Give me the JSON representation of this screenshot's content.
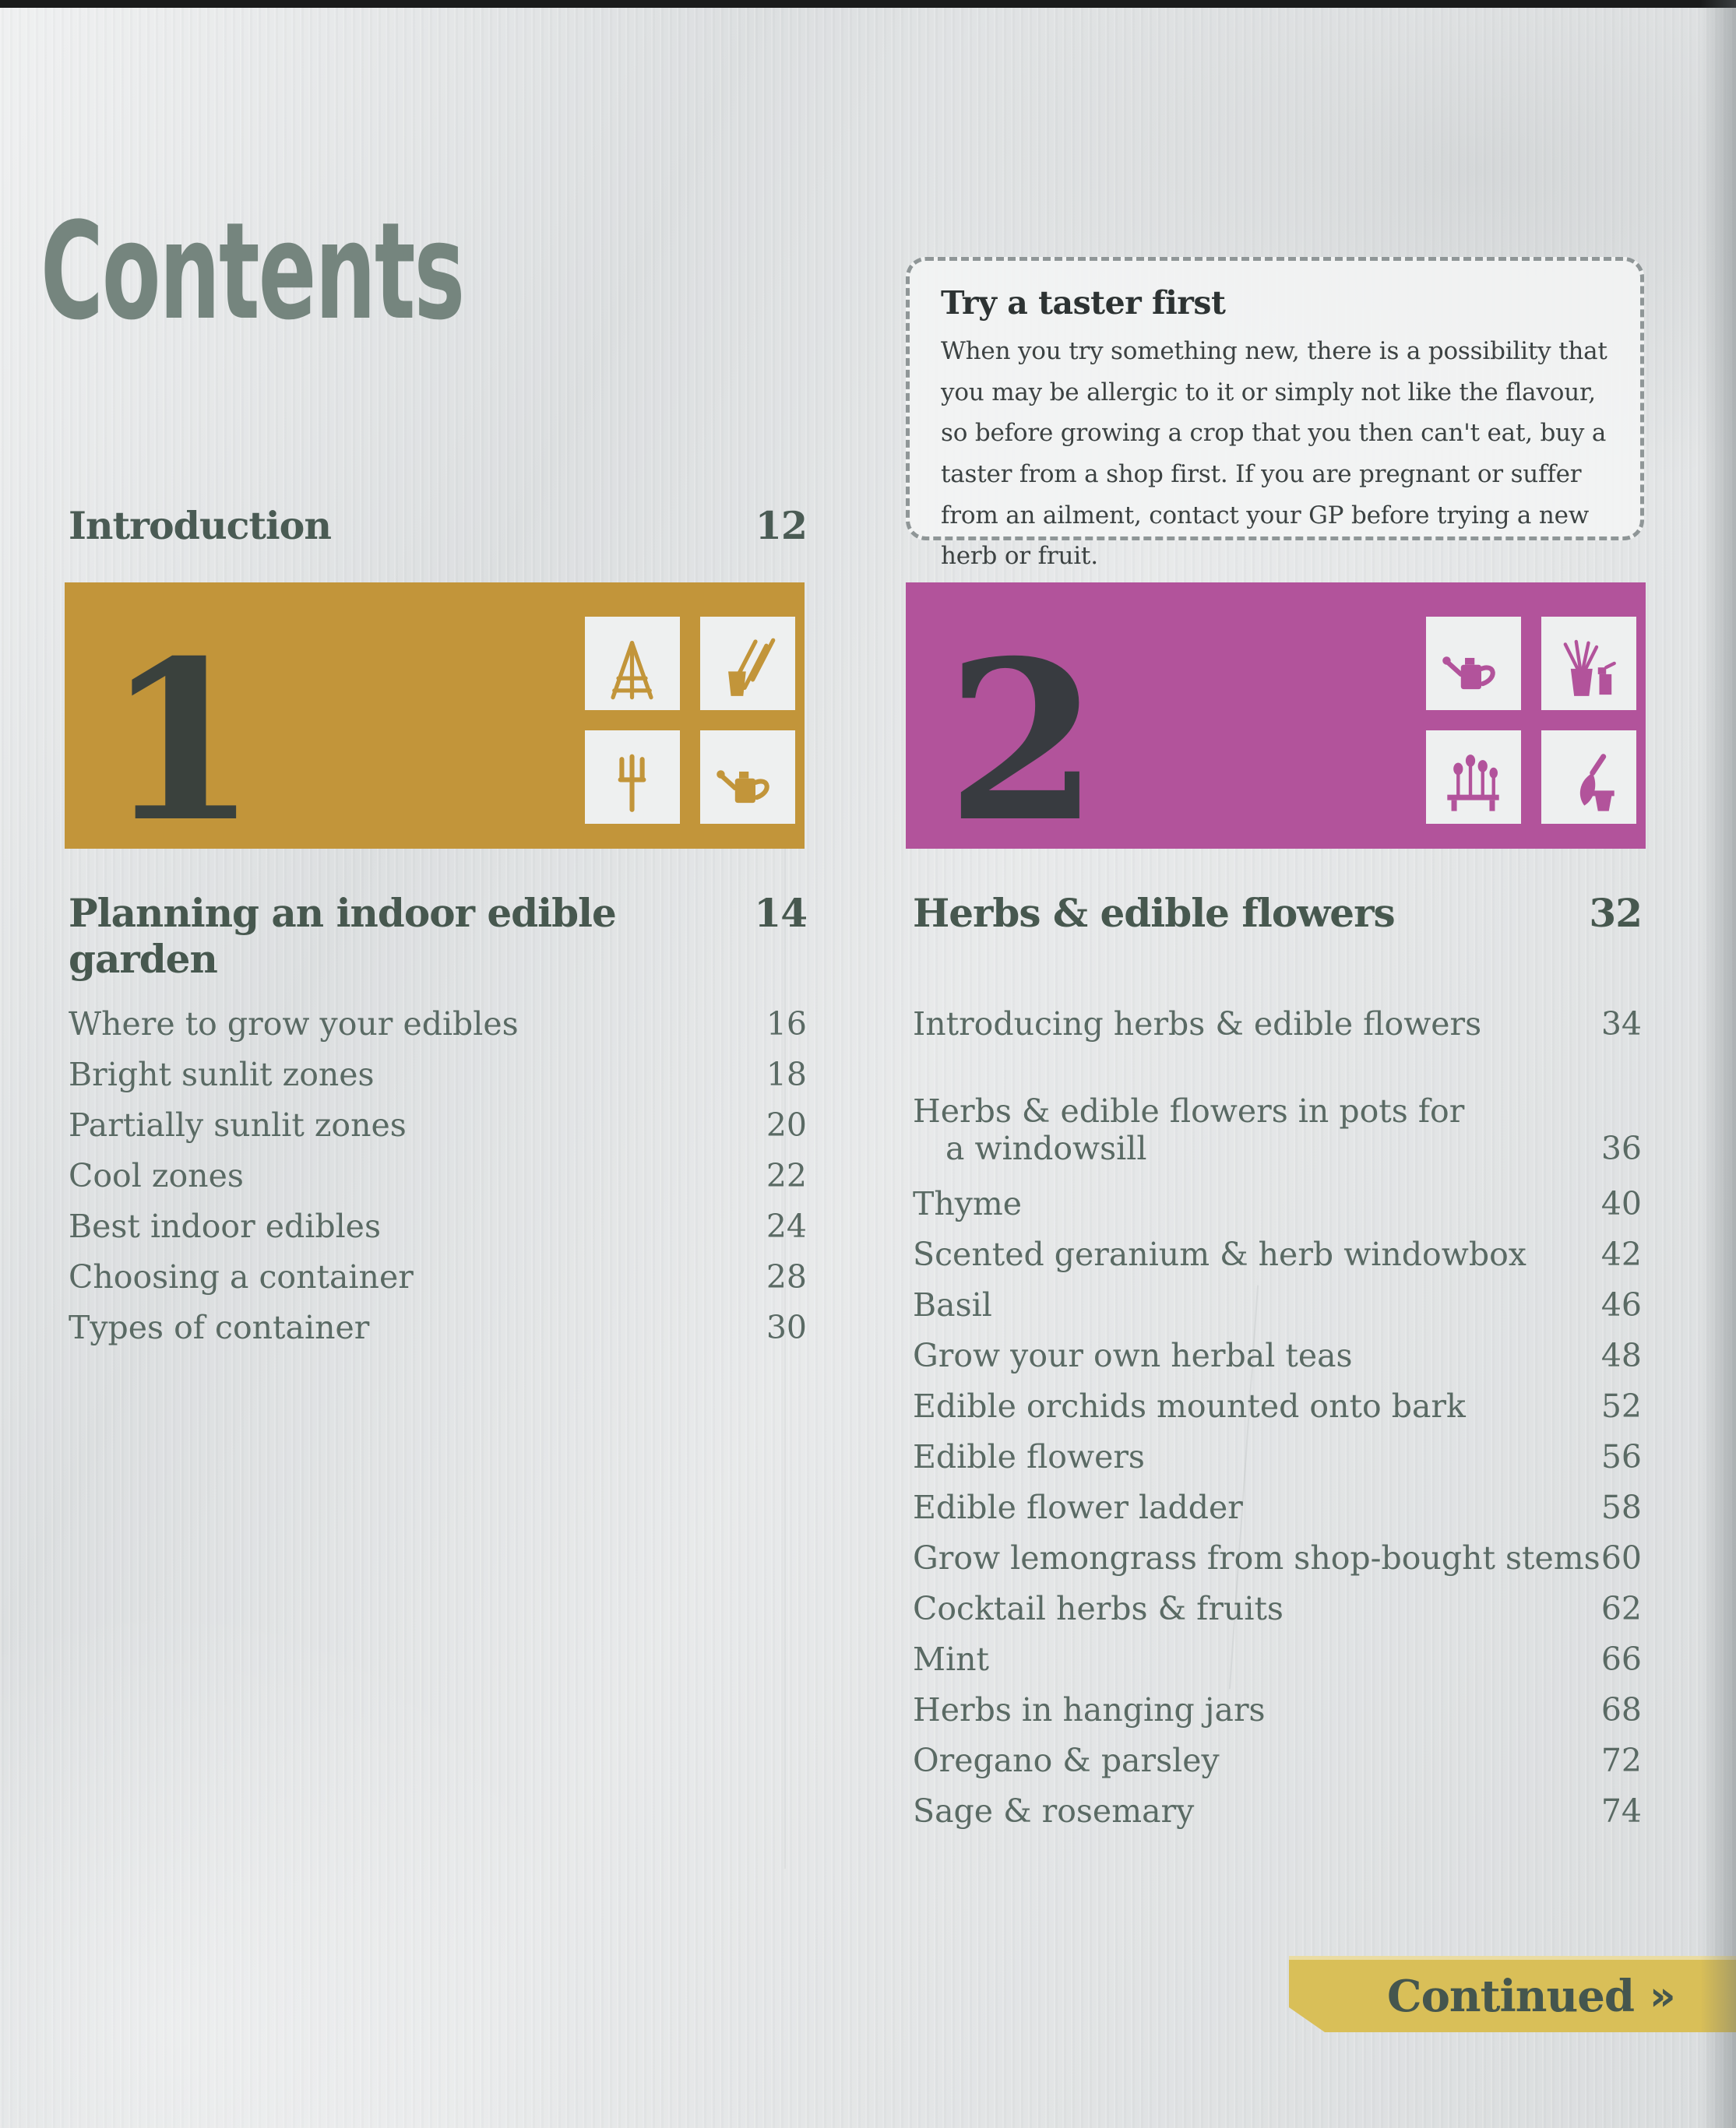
{
  "page": {
    "title": "Contents"
  },
  "taster_box": {
    "title": "Try a taster first",
    "body": "When you try something new, there is a possibility that you may be allergic to it or simply not like the flavour, so before growing a crop that you then can't eat, buy a taster from a shop first. If you are pregnant or suffer from an ailment, contact your GP before trying a new herb or fruit."
  },
  "introduction": {
    "label": "Introduction",
    "page": "12"
  },
  "chapters": [
    {
      "number": "1",
      "title": "Planning an indoor edible garden",
      "page": "14",
      "color": "#c2953a",
      "number_color": "#3a413d",
      "window_icons": [
        "trellis-icon",
        "dibber-and-pot-icon",
        "hand-fork-icon",
        "watering-can-icon"
      ],
      "entries": [
        {
          "label": "Where to grow your edibles",
          "page": "16"
        },
        {
          "label": "Bright sunlit zones",
          "page": "18"
        },
        {
          "label": "Partially sunlit zones",
          "page": "20"
        },
        {
          "label": "Cool zones",
          "page": "22"
        },
        {
          "label": "Best indoor edibles",
          "page": "24"
        },
        {
          "label": "Choosing a container",
          "page": "28"
        },
        {
          "label": "Types of container",
          "page": "30"
        }
      ]
    },
    {
      "number": "2",
      "title": "Herbs & edible flowers",
      "page": "32",
      "color": "#b2539b",
      "number_color": "#383b40",
      "window_icons": [
        "watering-can-icon",
        "potted-grass-and-spray-icon",
        "flower-bench-icon",
        "trowel-and-pot-icon"
      ],
      "entries": [
        {
          "label": "Introducing herbs & edible flowers",
          "page": "34"
        },
        {
          "label": "Herbs & edible flowers in pots for",
          "label_line2": "a windowsill",
          "page": "36",
          "gap_before": true
        },
        {
          "label": "Thyme",
          "page": "40"
        },
        {
          "label": "Scented geranium & herb windowbox",
          "page": "42"
        },
        {
          "label": "Basil",
          "page": "46"
        },
        {
          "label": "Grow your own herbal teas",
          "page": "48"
        },
        {
          "label": "Edible orchids mounted onto bark",
          "page": "52"
        },
        {
          "label": "Edible flowers",
          "page": "56"
        },
        {
          "label": "Edible flower ladder",
          "page": "58"
        },
        {
          "label": "Grow lemongrass from shop-bought stems",
          "page": "60"
        },
        {
          "label": "Cocktail herbs & fruits",
          "page": "62"
        },
        {
          "label": "Mint",
          "page": "66"
        },
        {
          "label": "Herbs in hanging jars",
          "page": "68"
        },
        {
          "label": "Oregano & parsley",
          "page": "72"
        },
        {
          "label": "Sage & rosemary",
          "page": "74"
        }
      ]
    }
  ],
  "continued": {
    "label": "Continued",
    "icon": "»"
  },
  "colors": {
    "background": "#e3e5e6",
    "title_text": "#75857e",
    "heading_text": "#47584f",
    "body_text": "#5a6a64",
    "chapter1_banner": "#c2953a",
    "chapter2_banner": "#b2539b",
    "continued_banner": "#d9bf58",
    "top_edge": "#1a1b1b"
  }
}
